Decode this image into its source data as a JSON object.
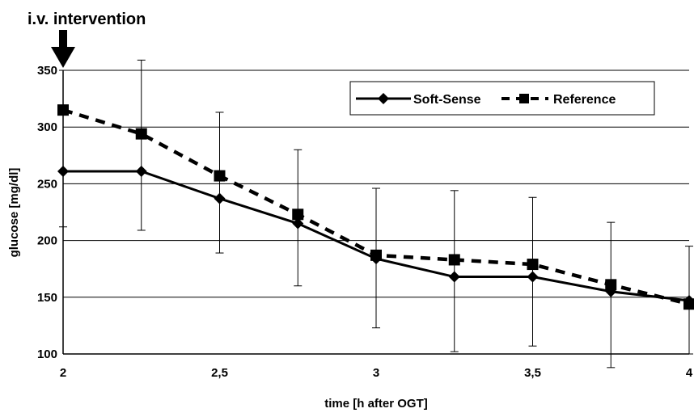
{
  "chart_data": {
    "type": "line",
    "annotation": "i.v. intervention",
    "xlabel": "time [h after OGT]",
    "ylabel": "glucose [mg/dl]",
    "xlim": [
      2,
      4
    ],
    "ylim": [
      100,
      350
    ],
    "x_ticks": [
      2,
      2.5,
      3,
      3.5,
      4
    ],
    "x_tick_labels": [
      "2",
      "2,5",
      "3",
      "3,5",
      "4"
    ],
    "y_ticks": [
      100,
      150,
      200,
      250,
      300,
      350
    ],
    "y_tick_labels": [
      "100",
      "150",
      "200",
      "250",
      "300",
      "350"
    ],
    "grid": "horizontal",
    "legend_position": "top-right",
    "x": [
      2,
      2.25,
      2.5,
      2.75,
      3,
      3.25,
      3.5,
      3.75,
      4
    ],
    "series": [
      {
        "name": "Soft-Sense",
        "line": "solid",
        "marker": "diamond",
        "color": "#000000",
        "values": [
          261,
          261,
          237,
          215,
          184,
          168,
          168,
          155,
          147
        ],
        "error_upper": [
          350,
          359,
          313,
          280,
          246,
          244,
          238,
          216,
          195
        ],
        "error_lower": [
          212,
          209,
          189,
          160,
          123,
          102,
          107,
          88,
          100
        ]
      },
      {
        "name": "Reference",
        "line": "dashed",
        "marker": "square",
        "color": "#000000",
        "values": [
          315,
          294,
          257,
          223,
          187,
          183,
          179,
          161,
          144
        ]
      }
    ]
  }
}
